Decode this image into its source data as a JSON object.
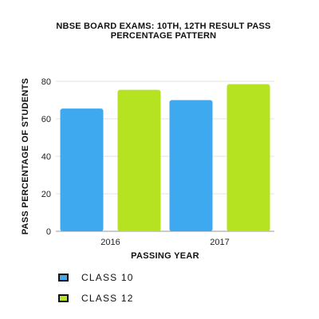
{
  "chart_data": {
    "type": "bar",
    "title_line1": "NBSE BOARD EXAMS: 10TH, 12TH RESULT PASS",
    "title_line2": "PERCENTAGE PATTERN",
    "xlabel": "PASSING YEAR",
    "ylabel": "PASS PERCENTAGE OF STUDENTS",
    "categories": [
      "2016",
      "2017"
    ],
    "ylim": [
      0,
      80
    ],
    "yticks": [
      0,
      20,
      40,
      60,
      80
    ],
    "grid": true,
    "legend_placement": "bottom-left",
    "series": [
      {
        "name": "CLASS 10",
        "color": "#3ea9ef",
        "values": [
          65.5,
          70.0
        ]
      },
      {
        "name": "CLASS 12",
        "color": "#b5e221",
        "values": [
          75.5,
          78.5
        ]
      }
    ]
  }
}
